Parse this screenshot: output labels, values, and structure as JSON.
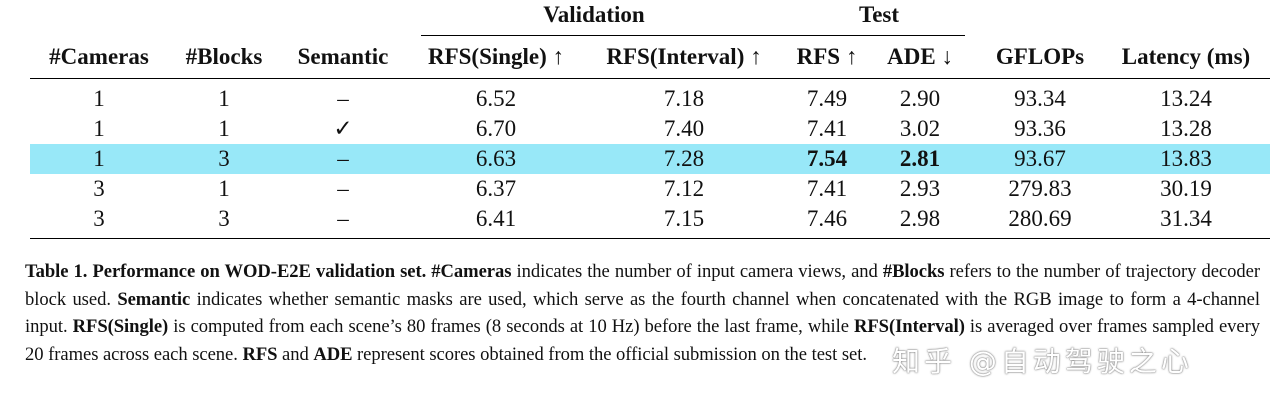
{
  "table": {
    "group_headers": {
      "validation": "Validation",
      "test": "Test"
    },
    "columns": [
      "#Cameras",
      "#Blocks",
      "Semantic",
      "RFS(Single) ↑",
      "RFS(Interval) ↑",
      "RFS ↑",
      "ADE ↓",
      "GFLOPs",
      "Latency (ms)"
    ],
    "rows": [
      {
        "cells": [
          "1",
          "1",
          "–",
          "6.52",
          "7.18",
          "7.49",
          "2.90",
          "93.34",
          "13.24"
        ],
        "highlight": false
      },
      {
        "cells": [
          "1",
          "1",
          "✓",
          "6.70",
          "7.40",
          "7.41",
          "3.02",
          "93.36",
          "13.28"
        ],
        "highlight": false
      },
      {
        "cells": [
          "1",
          "3",
          "–",
          "6.63",
          "7.28",
          "7.54",
          "2.81",
          "93.67",
          "13.83"
        ],
        "highlight": true,
        "bold_cols": [
          5,
          6
        ]
      },
      {
        "cells": [
          "3",
          "1",
          "–",
          "6.37",
          "7.12",
          "7.41",
          "2.93",
          "279.83",
          "30.19"
        ],
        "highlight": false
      },
      {
        "cells": [
          "3",
          "3",
          "–",
          "6.41",
          "7.15",
          "7.46",
          "2.98",
          "280.69",
          "31.34"
        ],
        "highlight": false
      }
    ],
    "highlight_color": "#98e8f8"
  },
  "caption": {
    "label": "Table 1.",
    "title": "Performance on WOD-E2E validation set.",
    "k_cameras": "#Cameras",
    "t1": " indicates the number of input camera views, and ",
    "k_blocks": "#Blocks",
    "t2": " refers to the number of trajectory decoder block used. ",
    "k_semantic": "Semantic",
    "t3": " indicates whether semantic masks are used, which serve as the fourth channel when concatenated with the RGB image to form a 4-channel input. ",
    "k_rfs_single": "RFS(Single)",
    "t4": " is computed from each scene’s 80 frames (8 seconds at 10 Hz) before the last frame, while ",
    "k_rfs_interval": "RFS(Interval)",
    "t5": " is averaged over frames sampled every 20 frames across each scene. ",
    "k_rfs": "RFS",
    "t6": " and ",
    "k_ade": "ADE",
    "t7": " represent scores obtained from the official submission on the test set."
  },
  "watermark": "知乎 @自动驾驶之心"
}
